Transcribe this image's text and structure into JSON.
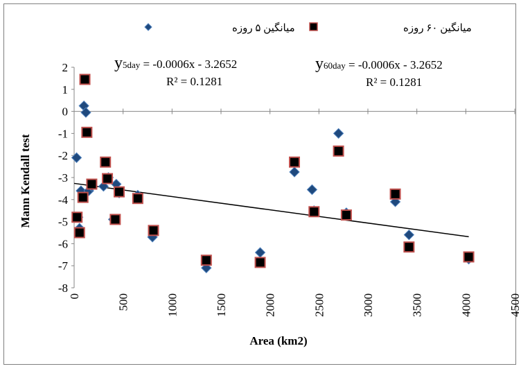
{
  "chart_data": {
    "type": "scatter",
    "xlabel": "Area (km2)",
    "ylabel": "Mann Kendall test",
    "xlim": [
      0,
      4500
    ],
    "ylim": [
      -8,
      2
    ],
    "x_ticks": [
      "0",
      "500",
      "1000",
      "1500",
      "2000",
      "2500",
      "3000",
      "3500",
      "4000",
      "4500"
    ],
    "y_ticks": [
      "2",
      "1",
      "0",
      "-1",
      "-2",
      "-3",
      "-4",
      "-5",
      "-6",
      "-7",
      "-8"
    ],
    "grid": false,
    "legend_position": "top",
    "series": [
      {
        "name": "میانگین ۵ روزه",
        "marker": "diamond",
        "color": "#1f497d",
        "edge": "#4f81bd",
        "points": [
          [
            25,
            -2.1
          ],
          [
            40,
            -4.8
          ],
          [
            55,
            -5.3
          ],
          [
            70,
            -3.6
          ],
          [
            100,
            0.25
          ],
          [
            120,
            -0.05
          ],
          [
            150,
            -3.6
          ],
          [
            180,
            -3.4
          ],
          [
            300,
            -3.4
          ],
          [
            350,
            -3.0
          ],
          [
            400,
            -4.9
          ],
          [
            430,
            -3.3
          ],
          [
            460,
            -3.7
          ],
          [
            650,
            -3.8
          ],
          [
            800,
            -5.7
          ],
          [
            1350,
            -7.1
          ],
          [
            1900,
            -6.4
          ],
          [
            2250,
            -2.75
          ],
          [
            2430,
            -3.55
          ],
          [
            2450,
            -4.5
          ],
          [
            2700,
            -1.0
          ],
          [
            2780,
            -4.6
          ],
          [
            3280,
            -4.1
          ],
          [
            3420,
            -5.6
          ],
          [
            4030,
            -6.7
          ]
        ]
      },
      {
        "name": "میانگین ۶۰ روزه",
        "marker": "square",
        "color": "#000000",
        "edge": "#c0504d",
        "points": [
          [
            30,
            -4.8
          ],
          [
            55,
            -5.5
          ],
          [
            90,
            -3.9
          ],
          [
            110,
            1.45
          ],
          [
            130,
            -0.95
          ],
          [
            180,
            -3.3
          ],
          [
            320,
            -2.3
          ],
          [
            340,
            -3.05
          ],
          [
            420,
            -4.9
          ],
          [
            460,
            -3.65
          ],
          [
            650,
            -3.95
          ],
          [
            810,
            -5.4
          ],
          [
            1350,
            -6.75
          ],
          [
            1900,
            -6.85
          ],
          [
            2250,
            -2.3
          ],
          [
            2450,
            -4.55
          ],
          [
            2700,
            -1.8
          ],
          [
            2780,
            -4.7
          ],
          [
            3280,
            -3.75
          ],
          [
            3420,
            -6.15
          ],
          [
            4030,
            -6.6
          ]
        ]
      }
    ],
    "trendline": {
      "slope": -0.0006,
      "intercept": -3.2652,
      "x_range": [
        0,
        4030
      ],
      "color": "#000000"
    },
    "annotations": [
      {
        "prefix": "y",
        "subscript": "5day",
        "equation": " = -0.0006x - 3.2652",
        "r2": "R² = 0.1281"
      },
      {
        "prefix": "y",
        "subscript": "60day",
        "equation": " = -0.0006x - 3.2652",
        "r2": "R² = 0.1281"
      }
    ]
  }
}
